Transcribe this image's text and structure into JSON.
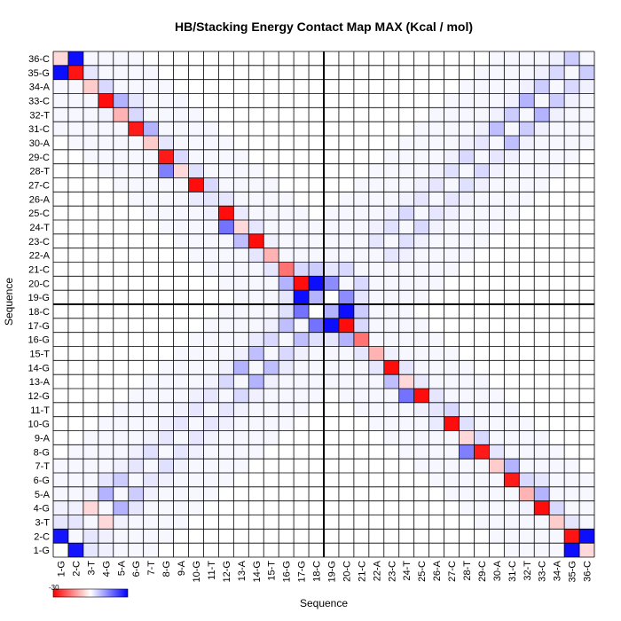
{
  "chart_data": {
    "type": "heatmap",
    "title": "HB/Stacking Energy Contact Map MAX (Kcal / mol)",
    "xlabel": "Sequence",
    "ylabel": "Sequence",
    "residues": [
      "1-G",
      "2-C",
      "3-T",
      "4-G",
      "5-A",
      "6-G",
      "7-T",
      "8-G",
      "9-A",
      "10-G",
      "11-T",
      "12-G",
      "13-A",
      "14-G",
      "15-T",
      "16-G",
      "17-G",
      "18-C",
      "19-G",
      "20-C",
      "21-C",
      "22-A",
      "23-C",
      "24-T",
      "25-C",
      "26-A",
      "27-C",
      "28-T",
      "29-C",
      "30-A",
      "31-C",
      "32-T",
      "33-C",
      "34-A",
      "35-G",
      "36-C"
    ],
    "colorbar": {
      "min_label": "-30",
      "low_color": "#ff0000",
      "mid_color": "#ffffff",
      "high_color": "#0000ff"
    },
    "grid": true,
    "axis_position": "bottom-left",
    "color_scale": {
      "negative": "#ff0000",
      "zero": "#ffffff",
      "positive": "#0000ff",
      "scale_max": 1.0
    },
    "divider_index": 18,
    "cells": [
      [
        1,
        2,
        0.92
      ],
      [
        2,
        1,
        0.92
      ],
      [
        1,
        3,
        0.1
      ],
      [
        3,
        1,
        0.1
      ],
      [
        1,
        4,
        0.06
      ],
      [
        4,
        1,
        0.06
      ],
      [
        1,
        35,
        0.95
      ],
      [
        35,
        1,
        0.95
      ],
      [
        1,
        36,
        -0.15
      ],
      [
        36,
        1,
        -0.15
      ],
      [
        2,
        3,
        0.1
      ],
      [
        3,
        2,
        0.1
      ],
      [
        2,
        4,
        0.06
      ],
      [
        4,
        2,
        0.06
      ],
      [
        2,
        35,
        -0.92
      ],
      [
        35,
        2,
        -0.92
      ],
      [
        2,
        36,
        0.95
      ],
      [
        36,
        2,
        0.95
      ],
      [
        3,
        4,
        -0.15
      ],
      [
        4,
        3,
        -0.15
      ],
      [
        3,
        5,
        0.05
      ],
      [
        5,
        3,
        0.05
      ],
      [
        3,
        34,
        -0.2
      ],
      [
        34,
        3,
        -0.2
      ],
      [
        3,
        35,
        0.1
      ],
      [
        35,
        3,
        0.1
      ],
      [
        4,
        5,
        0.3
      ],
      [
        5,
        4,
        0.3
      ],
      [
        4,
        6,
        0.1
      ],
      [
        6,
        4,
        0.1
      ],
      [
        4,
        33,
        -0.95
      ],
      [
        33,
        4,
        -0.95
      ],
      [
        4,
        34,
        0.15
      ],
      [
        34,
        4,
        0.15
      ],
      [
        4,
        32,
        0.05
      ],
      [
        32,
        4,
        0.05
      ],
      [
        5,
        6,
        0.2
      ],
      [
        6,
        5,
        0.2
      ],
      [
        5,
        7,
        0.06
      ],
      [
        7,
        5,
        0.06
      ],
      [
        5,
        32,
        -0.3
      ],
      [
        32,
        5,
        -0.3
      ],
      [
        5,
        33,
        0.3
      ],
      [
        33,
        5,
        0.3
      ],
      [
        6,
        7,
        0.1
      ],
      [
        7,
        6,
        0.1
      ],
      [
        6,
        8,
        0.06
      ],
      [
        8,
        6,
        0.06
      ],
      [
        6,
        31,
        -0.9
      ],
      [
        31,
        6,
        -0.9
      ],
      [
        6,
        32,
        0.15
      ],
      [
        32,
        6,
        0.15
      ],
      [
        6,
        33,
        0.1
      ],
      [
        33,
        6,
        0.1
      ],
      [
        7,
        8,
        0.12
      ],
      [
        8,
        7,
        0.12
      ],
      [
        7,
        9,
        0.05
      ],
      [
        9,
        7,
        0.05
      ],
      [
        7,
        30,
        -0.2
      ],
      [
        30,
        7,
        -0.2
      ],
      [
        7,
        31,
        0.3
      ],
      [
        31,
        7,
        0.3
      ],
      [
        8,
        9,
        0.1
      ],
      [
        9,
        8,
        0.1
      ],
      [
        8,
        10,
        0.06
      ],
      [
        10,
        8,
        0.06
      ],
      [
        8,
        29,
        -0.9
      ],
      [
        29,
        8,
        -0.9
      ],
      [
        8,
        28,
        0.5
      ],
      [
        28,
        8,
        0.5
      ],
      [
        8,
        30,
        0.1
      ],
      [
        30,
        8,
        0.1
      ],
      [
        9,
        10,
        0.1
      ],
      [
        10,
        9,
        0.1
      ],
      [
        9,
        11,
        0.05
      ],
      [
        11,
        9,
        0.05
      ],
      [
        9,
        28,
        -0.15
      ],
      [
        28,
        9,
        -0.15
      ],
      [
        9,
        29,
        0.15
      ],
      [
        29,
        9,
        0.15
      ],
      [
        10,
        11,
        0.1
      ],
      [
        11,
        10,
        0.1
      ],
      [
        10,
        12,
        0.06
      ],
      [
        12,
        10,
        0.06
      ],
      [
        10,
        27,
        -0.95
      ],
      [
        27,
        10,
        -0.95
      ],
      [
        10,
        28,
        0.12
      ],
      [
        28,
        10,
        0.12
      ],
      [
        10,
        26,
        0.08
      ],
      [
        26,
        10,
        0.08
      ],
      [
        11,
        12,
        0.1
      ],
      [
        12,
        11,
        0.1
      ],
      [
        11,
        13,
        0.05
      ],
      [
        13,
        11,
        0.05
      ],
      [
        11,
        26,
        0.1
      ],
      [
        26,
        11,
        0.1
      ],
      [
        11,
        27,
        0.15
      ],
      [
        27,
        11,
        0.15
      ],
      [
        11,
        25,
        0.06
      ],
      [
        25,
        11,
        0.06
      ],
      [
        12,
        13,
        0.15
      ],
      [
        13,
        12,
        0.15
      ],
      [
        12,
        14,
        0.06
      ],
      [
        14,
        12,
        0.06
      ],
      [
        12,
        25,
        -0.95
      ],
      [
        25,
        12,
        -0.95
      ],
      [
        12,
        24,
        0.55
      ],
      [
        24,
        12,
        0.55
      ],
      [
        12,
        26,
        0.1
      ],
      [
        26,
        12,
        0.1
      ],
      [
        13,
        14,
        0.3
      ],
      [
        14,
        13,
        0.3
      ],
      [
        13,
        15,
        0.06
      ],
      [
        15,
        13,
        0.06
      ],
      [
        13,
        24,
        -0.15
      ],
      [
        24,
        13,
        -0.15
      ],
      [
        13,
        23,
        0.25
      ],
      [
        23,
        13,
        0.25
      ],
      [
        13,
        25,
        0.08
      ],
      [
        25,
        13,
        0.08
      ],
      [
        14,
        15,
        0.25
      ],
      [
        15,
        14,
        0.25
      ],
      [
        14,
        16,
        0.08
      ],
      [
        16,
        14,
        0.08
      ],
      [
        14,
        23,
        -0.95
      ],
      [
        23,
        14,
        -0.95
      ],
      [
        14,
        22,
        0.1
      ],
      [
        22,
        14,
        0.1
      ],
      [
        14,
        24,
        0.1
      ],
      [
        24,
        14,
        0.1
      ],
      [
        15,
        16,
        0.15
      ],
      [
        16,
        15,
        0.15
      ],
      [
        15,
        17,
        0.06
      ],
      [
        17,
        15,
        0.06
      ],
      [
        15,
        22,
        -0.3
      ],
      [
        22,
        15,
        -0.3
      ],
      [
        15,
        21,
        0.1
      ],
      [
        21,
        15,
        0.1
      ],
      [
        15,
        23,
        0.06
      ],
      [
        23,
        15,
        0.06
      ],
      [
        16,
        17,
        0.25
      ],
      [
        17,
        16,
        0.25
      ],
      [
        16,
        18,
        0.12
      ],
      [
        18,
        16,
        0.12
      ],
      [
        16,
        21,
        -0.55
      ],
      [
        21,
        16,
        -0.55
      ],
      [
        16,
        20,
        0.3
      ],
      [
        20,
        16,
        0.3
      ],
      [
        16,
        19,
        0.1
      ],
      [
        19,
        16,
        0.1
      ],
      [
        17,
        18,
        0.55
      ],
      [
        18,
        17,
        0.55
      ],
      [
        17,
        19,
        0.95
      ],
      [
        19,
        17,
        0.95
      ],
      [
        17,
        20,
        -0.95
      ],
      [
        20,
        17,
        -0.95
      ],
      [
        17,
        21,
        0.15
      ],
      [
        21,
        17,
        0.15
      ],
      [
        18,
        19,
        0.3
      ],
      [
        19,
        18,
        0.3
      ],
      [
        18,
        20,
        0.95
      ],
      [
        20,
        18,
        0.95
      ],
      [
        18,
        21,
        0.2
      ],
      [
        21,
        18,
        0.2
      ],
      [
        19,
        20,
        0.45
      ],
      [
        20,
        19,
        0.45
      ],
      [
        19,
        21,
        0.1
      ],
      [
        21,
        19,
        0.1
      ],
      [
        20,
        21,
        0.15
      ],
      [
        21,
        20,
        0.15
      ],
      [
        22,
        23,
        0.1
      ],
      [
        23,
        22,
        0.1
      ],
      [
        22,
        24,
        0.06
      ],
      [
        24,
        22,
        0.06
      ],
      [
        23,
        24,
        0.12
      ],
      [
        24,
        23,
        0.12
      ],
      [
        23,
        25,
        0.06
      ],
      [
        25,
        23,
        0.06
      ],
      [
        24,
        25,
        0.15
      ],
      [
        25,
        24,
        0.15
      ],
      [
        24,
        26,
        0.05
      ],
      [
        26,
        24,
        0.05
      ],
      [
        25,
        26,
        0.1
      ],
      [
        26,
        25,
        0.1
      ],
      [
        25,
        27,
        0.06
      ],
      [
        27,
        25,
        0.06
      ],
      [
        26,
        27,
        0.1
      ],
      [
        27,
        26,
        0.1
      ],
      [
        26,
        28,
        0.05
      ],
      [
        28,
        26,
        0.05
      ],
      [
        27,
        28,
        0.12
      ],
      [
        28,
        27,
        0.12
      ],
      [
        27,
        29,
        0.06
      ],
      [
        29,
        27,
        0.06
      ],
      [
        28,
        29,
        0.15
      ],
      [
        29,
        28,
        0.15
      ],
      [
        28,
        30,
        0.05
      ],
      [
        30,
        28,
        0.05
      ],
      [
        29,
        30,
        0.1
      ],
      [
        30,
        29,
        0.1
      ],
      [
        29,
        31,
        0.06
      ],
      [
        31,
        29,
        0.06
      ],
      [
        30,
        31,
        0.25
      ],
      [
        31,
        30,
        0.25
      ],
      [
        30,
        32,
        0.05
      ],
      [
        32,
        30,
        0.05
      ],
      [
        31,
        32,
        0.2
      ],
      [
        32,
        31,
        0.2
      ],
      [
        31,
        33,
        0.06
      ],
      [
        33,
        31,
        0.06
      ],
      [
        32,
        33,
        0.3
      ],
      [
        33,
        32,
        0.3
      ],
      [
        32,
        34,
        0.06
      ],
      [
        34,
        32,
        0.06
      ],
      [
        33,
        34,
        0.2
      ],
      [
        34,
        33,
        0.2
      ],
      [
        33,
        35,
        0.06
      ],
      [
        35,
        33,
        0.06
      ],
      [
        34,
        35,
        0.15
      ],
      [
        35,
        34,
        0.15
      ],
      [
        34,
        36,
        0.06
      ],
      [
        36,
        34,
        0.06
      ],
      [
        35,
        36,
        0.2
      ],
      [
        36,
        35,
        0.2
      ],
      [
        1,
        1,
        0.0
      ],
      [
        18,
        18,
        0.0
      ],
      [
        19,
        19,
        0.0
      ]
    ]
  }
}
